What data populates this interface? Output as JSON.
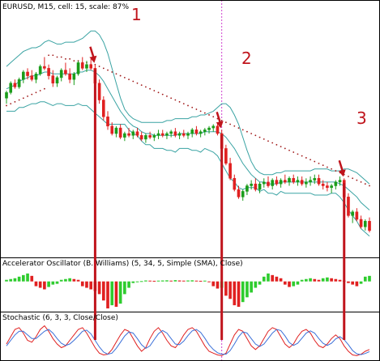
{
  "chart_data": [
    {
      "type": "candlestick",
      "title": "EURUSD, M15, cell: 15, scale: 87%",
      "up_color": "#1a9c1a",
      "down_color": "#e02020",
      "band_color": "#3aa3a3",
      "psar_color": "#a01818",
      "candles": [
        [
          1.5,
          1.54,
          1.47,
          1.53
        ],
        [
          1.53,
          1.59,
          1.52,
          1.58
        ],
        [
          1.58,
          1.6,
          1.55,
          1.56
        ],
        [
          1.56,
          1.61,
          1.55,
          1.6
        ],
        [
          1.6,
          1.65,
          1.58,
          1.64
        ],
        [
          1.64,
          1.66,
          1.6,
          1.62
        ],
        [
          1.62,
          1.65,
          1.59,
          1.6
        ],
        [
          1.6,
          1.64,
          1.58,
          1.63
        ],
        [
          1.63,
          1.68,
          1.62,
          1.67
        ],
        [
          1.67,
          1.72,
          1.65,
          1.66
        ],
        [
          1.66,
          1.68,
          1.6,
          1.62
        ],
        [
          1.62,
          1.65,
          1.56,
          1.58
        ],
        [
          1.58,
          1.62,
          1.56,
          1.61
        ],
        [
          1.61,
          1.66,
          1.59,
          1.65
        ],
        [
          1.65,
          1.69,
          1.62,
          1.63
        ],
        [
          1.63,
          1.66,
          1.58,
          1.6
        ],
        [
          1.6,
          1.64,
          1.57,
          1.63
        ],
        [
          1.63,
          1.7,
          1.62,
          1.69
        ],
        [
          1.69,
          1.72,
          1.65,
          1.66
        ],
        [
          1.66,
          1.7,
          1.64,
          1.68
        ],
        [
          1.68,
          1.71,
          1.65,
          1.66
        ],
        [
          1.66,
          1.68,
          1.56,
          1.58
        ],
        [
          1.58,
          1.6,
          1.47,
          1.49
        ],
        [
          1.49,
          1.51,
          1.38,
          1.4
        ],
        [
          1.4,
          1.43,
          1.33,
          1.35
        ],
        [
          1.35,
          1.37,
          1.3,
          1.31
        ],
        [
          1.31,
          1.35,
          1.29,
          1.34
        ],
        [
          1.34,
          1.36,
          1.28,
          1.29
        ],
        [
          1.29,
          1.32,
          1.27,
          1.31
        ],
        [
          1.31,
          1.34,
          1.29,
          1.3
        ],
        [
          1.3,
          1.33,
          1.28,
          1.32
        ],
        [
          1.32,
          1.34,
          1.29,
          1.3
        ],
        [
          1.3,
          1.32,
          1.27,
          1.28
        ],
        [
          1.28,
          1.31,
          1.26,
          1.3
        ],
        [
          1.3,
          1.32,
          1.28,
          1.29
        ],
        [
          1.29,
          1.31,
          1.27,
          1.3
        ],
        [
          1.3,
          1.33,
          1.28,
          1.31
        ],
        [
          1.31,
          1.33,
          1.29,
          1.3
        ],
        [
          1.3,
          1.32,
          1.28,
          1.31
        ],
        [
          1.31,
          1.33,
          1.29,
          1.32
        ],
        [
          1.32,
          1.34,
          1.29,
          1.3
        ],
        [
          1.3,
          1.32,
          1.28,
          1.31
        ],
        [
          1.31,
          1.33,
          1.29,
          1.3
        ],
        [
          1.3,
          1.32,
          1.28,
          1.31
        ],
        [
          1.31,
          1.34,
          1.29,
          1.33
        ],
        [
          1.33,
          1.35,
          1.3,
          1.31
        ],
        [
          1.31,
          1.33,
          1.29,
          1.32
        ],
        [
          1.32,
          1.34,
          1.3,
          1.33
        ],
        [
          1.33,
          1.35,
          1.31,
          1.34
        ],
        [
          1.34,
          1.36,
          1.32,
          1.35
        ],
        [
          1.35,
          1.37,
          1.3,
          1.31
        ],
        [
          1.31,
          1.33,
          1.22,
          1.23
        ],
        [
          1.23,
          1.25,
          1.14,
          1.15
        ],
        [
          1.15,
          1.18,
          1.06,
          1.07
        ],
        [
          1.07,
          1.09,
          1.0,
          1.01
        ],
        [
          1.01,
          1.03,
          0.96,
          0.97
        ],
        [
          0.97,
          1.01,
          0.95,
          1.0
        ],
        [
          1.0,
          1.04,
          0.98,
          1.03
        ],
        [
          1.03,
          1.06,
          1.01,
          1.04
        ],
        [
          1.04,
          1.07,
          1.0,
          1.01
        ],
        [
          1.01,
          1.05,
          0.99,
          1.04
        ],
        [
          1.04,
          1.07,
          1.02,
          1.05
        ],
        [
          1.05,
          1.08,
          1.02,
          1.03
        ],
        [
          1.03,
          1.07,
          1.01,
          1.06
        ],
        [
          1.06,
          1.08,
          1.03,
          1.04
        ],
        [
          1.04,
          1.07,
          1.02,
          1.06
        ],
        [
          1.06,
          1.09,
          1.04,
          1.05
        ],
        [
          1.05,
          1.08,
          1.03,
          1.07
        ],
        [
          1.07,
          1.09,
          1.04,
          1.05
        ],
        [
          1.05,
          1.08,
          1.03,
          1.06
        ],
        [
          1.06,
          1.08,
          1.03,
          1.04
        ],
        [
          1.04,
          1.07,
          1.02,
          1.05
        ],
        [
          1.05,
          1.08,
          1.03,
          1.06
        ],
        [
          1.06,
          1.09,
          1.04,
          1.07
        ],
        [
          1.07,
          1.09,
          1.03,
          1.04
        ],
        [
          1.04,
          1.06,
          1.01,
          1.03
        ],
        [
          1.03,
          1.05,
          1.0,
          1.02
        ],
        [
          1.02,
          1.04,
          0.99,
          1.03
        ],
        [
          1.03,
          1.06,
          1.01,
          1.05
        ],
        [
          1.05,
          1.08,
          1.03,
          1.06
        ],
        [
          1.06,
          1.07,
          0.96,
          0.97
        ],
        [
          0.97,
          0.99,
          0.86,
          0.87
        ],
        [
          0.87,
          0.9,
          0.83,
          0.89
        ],
        [
          0.89,
          0.91,
          0.84,
          0.85
        ],
        [
          0.85,
          0.87,
          0.8,
          0.81
        ],
        [
          0.81,
          0.85,
          0.79,
          0.84
        ],
        [
          0.84,
          0.86,
          0.78,
          0.79
        ]
      ],
      "bollinger": {
        "upper": [
          1.67,
          1.69,
          1.71,
          1.73,
          1.75,
          1.76,
          1.77,
          1.77,
          1.78,
          1.8,
          1.81,
          1.8,
          1.79,
          1.79,
          1.8,
          1.8,
          1.8,
          1.81,
          1.82,
          1.84,
          1.86,
          1.86,
          1.84,
          1.8,
          1.74,
          1.66,
          1.58,
          1.5,
          1.44,
          1.41,
          1.39,
          1.38,
          1.37,
          1.37,
          1.37,
          1.37,
          1.37,
          1.37,
          1.38,
          1.38,
          1.39,
          1.39,
          1.39,
          1.39,
          1.4,
          1.4,
          1.41,
          1.41,
          1.42,
          1.43,
          1.45,
          1.47,
          1.47,
          1.45,
          1.41,
          1.36,
          1.29,
          1.22,
          1.16,
          1.12,
          1.1,
          1.09,
          1.09,
          1.09,
          1.1,
          1.1,
          1.11,
          1.11,
          1.11,
          1.11,
          1.11,
          1.11,
          1.11,
          1.12,
          1.12,
          1.12,
          1.12,
          1.11,
          1.11,
          1.11,
          1.12,
          1.12,
          1.11,
          1.1,
          1.08,
          1.06,
          1.04
        ],
        "middle": [
          1.55,
          1.56,
          1.57,
          1.59,
          1.6,
          1.61,
          1.62,
          1.62,
          1.63,
          1.64,
          1.64,
          1.63,
          1.63,
          1.63,
          1.63,
          1.63,
          1.63,
          1.64,
          1.64,
          1.65,
          1.65,
          1.64,
          1.62,
          1.59,
          1.55,
          1.51,
          1.47,
          1.43,
          1.4,
          1.37,
          1.35,
          1.34,
          1.32,
          1.31,
          1.31,
          1.3,
          1.3,
          1.3,
          1.3,
          1.3,
          1.3,
          1.31,
          1.31,
          1.31,
          1.31,
          1.31,
          1.31,
          1.32,
          1.32,
          1.32,
          1.32,
          1.31,
          1.29,
          1.26,
          1.23,
          1.19,
          1.15,
          1.12,
          1.09,
          1.07,
          1.05,
          1.05,
          1.04,
          1.04,
          1.04,
          1.05,
          1.05,
          1.05,
          1.05,
          1.05,
          1.05,
          1.05,
          1.05,
          1.05,
          1.05,
          1.05,
          1.05,
          1.05,
          1.05,
          1.04,
          1.03,
          1.01,
          0.99,
          0.97,
          0.94,
          0.92,
          0.9
        ],
        "lower": [
          1.43,
          1.43,
          1.43,
          1.45,
          1.45,
          1.46,
          1.47,
          1.47,
          1.48,
          1.48,
          1.47,
          1.46,
          1.47,
          1.47,
          1.46,
          1.46,
          1.46,
          1.47,
          1.46,
          1.46,
          1.44,
          1.42,
          1.4,
          1.38,
          1.36,
          1.36,
          1.36,
          1.36,
          1.36,
          1.33,
          1.31,
          1.3,
          1.27,
          1.25,
          1.25,
          1.23,
          1.23,
          1.23,
          1.22,
          1.22,
          1.21,
          1.23,
          1.23,
          1.23,
          1.22,
          1.22,
          1.21,
          1.23,
          1.22,
          1.21,
          1.19,
          1.15,
          1.11,
          1.07,
          1.05,
          1.02,
          1.01,
          1.02,
          1.02,
          1.02,
          1.0,
          1.01,
          0.99,
          0.99,
          0.98,
          1.0,
          0.99,
          0.99,
          0.99,
          0.99,
          0.99,
          0.99,
          0.99,
          0.98,
          0.98,
          0.98,
          0.98,
          0.99,
          0.99,
          0.97,
          0.94,
          0.9,
          0.87,
          0.84,
          0.8,
          0.78,
          0.76
        ]
      },
      "psar": [
        1.46,
        1.47,
        1.48,
        1.49,
        1.5,
        1.51,
        1.52,
        1.53,
        1.54,
        1.55,
        1.73,
        1.73,
        1.72,
        1.72,
        1.71,
        1.71,
        1.7,
        1.7,
        1.69,
        1.69,
        1.68,
        1.68,
        1.67,
        1.66,
        1.65,
        1.64,
        1.63,
        1.62,
        1.61,
        1.6,
        1.59,
        1.58,
        1.57,
        1.56,
        1.55,
        1.54,
        1.53,
        1.52,
        1.51,
        1.5,
        1.49,
        1.48,
        1.47,
        1.46,
        1.45,
        1.44,
        1.43,
        1.42,
        1.41,
        1.4,
        1.39,
        1.38,
        1.37,
        1.36,
        1.35,
        1.34,
        1.33,
        1.32,
        1.31,
        1.3,
        1.29,
        1.28,
        1.27,
        1.26,
        1.25,
        1.24,
        1.23,
        1.22,
        1.21,
        1.2,
        1.19,
        1.18,
        1.17,
        1.16,
        1.15,
        1.14,
        1.13,
        1.12,
        1.11,
        1.1,
        1.09,
        1.08,
        1.07,
        1.06,
        1.05,
        1.04,
        1.03
      ],
      "vline_candle_index": 51,
      "annotations": [
        "1",
        "2",
        "3"
      ],
      "signal_candles": [
        21,
        51,
        80
      ]
    },
    {
      "type": "bar",
      "title": "Accelerator Oscillator (B. Williams) (5, 34, 5, Simple (SMA), Close)",
      "up_color": "#2ecc2e",
      "down_color": "#e02020",
      "values": [
        0.1,
        0.15,
        0.2,
        0.3,
        0.4,
        0.5,
        0.35,
        -0.3,
        -0.4,
        -0.5,
        -0.35,
        -0.2,
        -0.15,
        0.1,
        0.15,
        0.2,
        0.15,
        0.1,
        -0.3,
        -0.4,
        -0.5,
        -0.6,
        -0.8,
        -1.2,
        -1.7,
        -1.5,
        -1.6,
        -1.4,
        -0.8,
        -0.4,
        -0.1,
        -0.05,
        0.02,
        0.06,
        0.05,
        0.04,
        0.05,
        0.06,
        0.07,
        0.05,
        0.08,
        0.06,
        0.05,
        0.06,
        0.07,
        0.05,
        0.04,
        0.05,
        -0.05,
        -0.3,
        -0.45,
        -0.4,
        -0.9,
        -1.1,
        -1.5,
        -1.6,
        -1.3,
        -1.0,
        -0.7,
        -0.4,
        -0.2,
        0.3,
        0.5,
        0.4,
        0.3,
        0.2,
        -0.2,
        -0.35,
        -0.3,
        -0.2,
        0.1,
        0.15,
        0.2,
        0.15,
        0.1,
        0.2,
        0.25,
        0.2,
        0.15,
        0.1,
        0.05,
        -0.1,
        -0.2,
        -0.3,
        -0.15,
        0.3,
        0.35
      ],
      "ylim": [
        -1.8,
        0.8
      ]
    },
    {
      "type": "line",
      "title": "Stochastic (6, 3, 3, Close/Close)",
      "series": [
        {
          "color": "#e02020",
          "values": [
            40,
            60,
            80,
            85,
            70,
            50,
            45,
            60,
            80,
            90,
            75,
            55,
            40,
            30,
            35,
            50,
            65,
            80,
            85,
            70,
            50,
            30,
            15,
            10,
            12,
            25,
            45,
            65,
            80,
            75,
            55,
            35,
            20,
            30,
            55,
            75,
            85,
            70,
            50,
            35,
            30,
            45,
            65,
            80,
            85,
            75,
            55,
            35,
            20,
            15,
            10,
            8,
            15,
            40,
            65,
            80,
            75,
            55,
            35,
            25,
            35,
            55,
            75,
            85,
            80,
            60,
            40,
            30,
            40,
            60,
            75,
            80,
            70,
            50,
            35,
            30,
            40,
            55,
            65,
            55,
            35,
            20,
            10,
            8,
            12,
            20,
            25
          ]
        },
        {
          "color": "#3a6fd8",
          "values": [
            35,
            50,
            65,
            75,
            75,
            65,
            55,
            55,
            65,
            75,
            80,
            70,
            55,
            42,
            36,
            40,
            50,
            62,
            75,
            78,
            68,
            50,
            32,
            18,
            12,
            15,
            28,
            45,
            62,
            73,
            70,
            55,
            38,
            28,
            35,
            52,
            68,
            77,
            70,
            55,
            40,
            38,
            48,
            63,
            76,
            80,
            72,
            56,
            38,
            25,
            16,
            12,
            12,
            22,
            40,
            60,
            73,
            70,
            55,
            40,
            33,
            40,
            55,
            70,
            80,
            77,
            62,
            44,
            36,
            42,
            56,
            70,
            76,
            70,
            55,
            42,
            36,
            42,
            54,
            60,
            52,
            38,
            22,
            13,
            11,
            14,
            19
          ]
        }
      ],
      "ylim": [
        0,
        100
      ]
    }
  ]
}
